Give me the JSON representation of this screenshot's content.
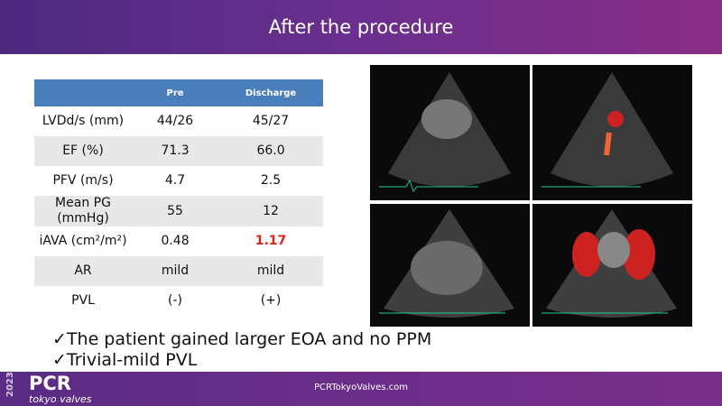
{
  "header": {
    "title": "After the procedure"
  },
  "table": {
    "columns": [
      "",
      "Pre",
      "Discharge"
    ],
    "rows": [
      [
        "LVDd/s (mm)",
        "44/26",
        "45/27"
      ],
      [
        "EF (%)",
        "71.3",
        "66.0"
      ],
      [
        "PFV (m/s)",
        "4.7",
        "2.5"
      ],
      [
        "Mean PG (mmHg)",
        "55",
        "12"
      ],
      [
        "iAVA (cm²/m²)",
        "0.48",
        "1.17"
      ],
      [
        "AR",
        "mild",
        "mild"
      ],
      [
        "PVL",
        "(-)",
        "(+)"
      ]
    ]
  },
  "bullets": [
    "✓The patient gained larger EOA and no PPM",
    "✓Trivial-mild PVL"
  ],
  "footer": {
    "year": "2023",
    "brand": "PCR",
    "subbrand": "tokyo valves",
    "url": "PCRTokyoValves.com"
  }
}
